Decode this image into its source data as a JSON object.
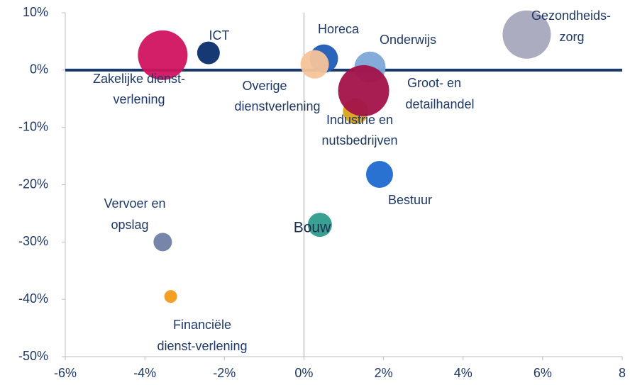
{
  "chart_data": {
    "type": "bubble",
    "xlim": [
      -6,
      8
    ],
    "xticks": [
      {
        "value": -6,
        "label": "-6%"
      },
      {
        "value": -4,
        "label": "-4%"
      },
      {
        "value": -2,
        "label": "-2%"
      },
      {
        "value": 0,
        "label": "0%"
      },
      {
        "value": 2,
        "label": "2%"
      },
      {
        "value": 4,
        "label": "4%"
      },
      {
        "value": 6,
        "label": "6%"
      },
      8
    ],
    "ylim": [
      -50,
      10
    ],
    "yticks": [
      {
        "value": 10,
        "label": "10%"
      },
      {
        "value": 0,
        "label": "0%"
      },
      {
        "value": -10,
        "label": "-10%"
      },
      {
        "value": -20,
        "label": "-20%"
      },
      {
        "value": -30,
        "label": "-30%"
      },
      {
        "value": -40,
        "label": "-40%"
      },
      {
        "value": -50,
        "label": "-50%"
      }
    ],
    "series": [
      {
        "name": [
          "Zakelijke dienst-",
          "verlening"
        ],
        "color": "#d0135f",
        "x": [
          -3.55
        ],
        "values": [
          2.6
        ],
        "sizes": [
          35
        ]
      },
      {
        "name": [
          "ICT"
        ],
        "color": "#0b2e6b",
        "x": [
          -2.4
        ],
        "values": [
          3.0
        ],
        "sizes": [
          16
        ]
      },
      {
        "name": [
          "Horeca"
        ],
        "color": "#1f5bb5",
        "x": [
          0.5
        ],
        "values": [
          2.0
        ],
        "sizes": [
          20
        ]
      },
      {
        "name": [
          "Overige",
          "dienstverlening"
        ],
        "color": "#f5c49a",
        "x": [
          0.27
        ],
        "values": [
          1.0
        ],
        "sizes": [
          20
        ]
      },
      {
        "name": [
          "Onderwijs"
        ],
        "color": "#7ea6d8",
        "x": [
          1.66
        ],
        "values": [
          0.5
        ],
        "sizes": [
          22
        ]
      },
      {
        "name": [
          "Industrie en",
          "nutsbedrijven"
        ],
        "color": "#d9a21b",
        "x": [
          1.3
        ],
        "values": [
          -7.2
        ],
        "sizes": [
          18
        ]
      },
      {
        "name": [
          "Groot- en",
          "detailhandel"
        ],
        "color": "#a3124a",
        "x": [
          1.5
        ],
        "values": [
          -3.6
        ],
        "sizes": [
          36
        ]
      },
      {
        "name": [
          "Gezondheids-",
          "zorg"
        ],
        "color": "#a6a8bd",
        "x": [
          5.6
        ],
        "values": [
          6.2
        ],
        "sizes": [
          34
        ]
      },
      {
        "name": [
          "Bestuur"
        ],
        "color": "#1e6ad0",
        "x": [
          1.9
        ],
        "values": [
          -18.2
        ],
        "sizes": [
          19
        ]
      },
      {
        "name": [
          "Bouw"
        ],
        "color": "#2e9c8c",
        "x": [
          0.4
        ],
        "values": [
          -27.0
        ],
        "sizes": [
          17
        ]
      },
      {
        "name": [
          "Vervoer en",
          "opslag"
        ],
        "color": "#6f7fa6",
        "x": [
          -3.55
        ],
        "values": [
          -30.0
        ],
        "sizes": [
          13
        ]
      },
      {
        "name": [
          "Financiële",
          "dienst-verlening"
        ],
        "color": "#f39a1a",
        "x": [
          -3.35
        ],
        "values": [
          -39.5
        ],
        "sizes": [
          9
        ]
      }
    ]
  }
}
